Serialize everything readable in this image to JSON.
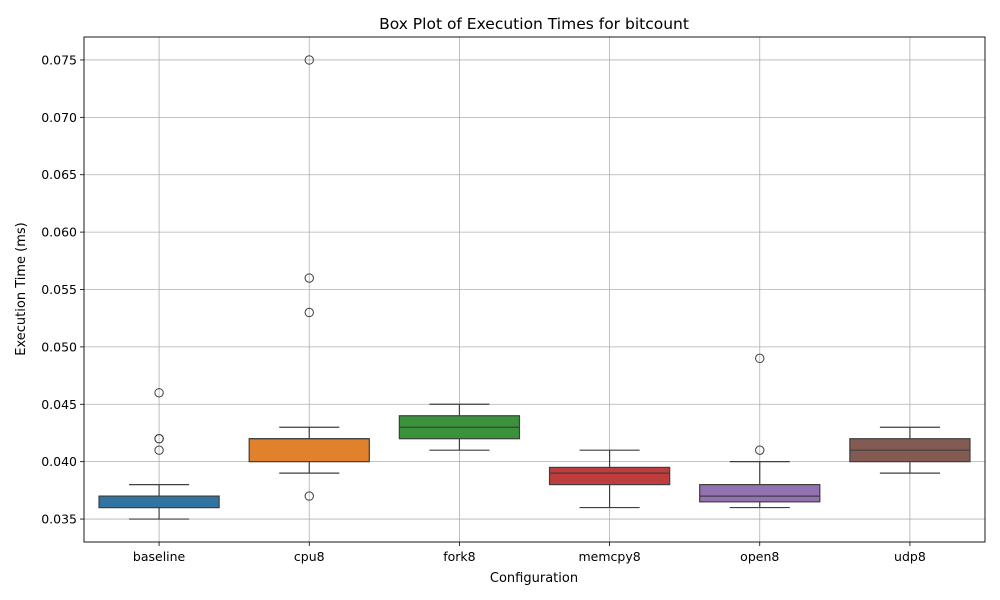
{
  "chart_data": {
    "type": "box",
    "title": "Box Plot of Execution Times for bitcount",
    "xlabel": "Configuration",
    "ylabel": "Execution Time (ms)",
    "ylim": [
      0.033,
      0.077
    ],
    "yticks": [
      "0.035",
      "0.040",
      "0.045",
      "0.050",
      "0.055",
      "0.060",
      "0.065",
      "0.070",
      "0.075"
    ],
    "grid": true,
    "categories": [
      "baseline",
      "cpu8",
      "fork8",
      "memcpy8",
      "open8",
      "udp8"
    ],
    "boxes": [
      {
        "category": "baseline",
        "color": "#3274a1",
        "whisker_low": 0.035,
        "q1": 0.036,
        "median": 0.036,
        "q3": 0.037,
        "whisker_high": 0.038,
        "outliers": [
          0.046,
          0.042,
          0.042,
          0.041
        ]
      },
      {
        "category": "cpu8",
        "color": "#e1812c",
        "whisker_low": 0.039,
        "q1": 0.04,
        "median": 0.042,
        "q3": 0.042,
        "whisker_high": 0.043,
        "outliers": [
          0.075,
          0.056,
          0.053,
          0.037
        ]
      },
      {
        "category": "fork8",
        "color": "#3a923a",
        "whisker_low": 0.041,
        "q1": 0.042,
        "median": 0.043,
        "q3": 0.044,
        "whisker_high": 0.045,
        "outliers": []
      },
      {
        "category": "memcpy8",
        "color": "#c03d3e",
        "whisker_low": 0.036,
        "q1": 0.038,
        "median": 0.039,
        "q3": 0.0395,
        "whisker_high": 0.041,
        "outliers": []
      },
      {
        "category": "open8",
        "color": "#9372b2",
        "whisker_low": 0.036,
        "q1": 0.0365,
        "median": 0.037,
        "q3": 0.038,
        "whisker_high": 0.04,
        "outliers": [
          0.049,
          0.041
        ]
      },
      {
        "category": "udp8",
        "color": "#845b53",
        "whisker_low": 0.039,
        "q1": 0.04,
        "median": 0.041,
        "q3": 0.042,
        "whisker_high": 0.043,
        "outliers": []
      }
    ]
  }
}
